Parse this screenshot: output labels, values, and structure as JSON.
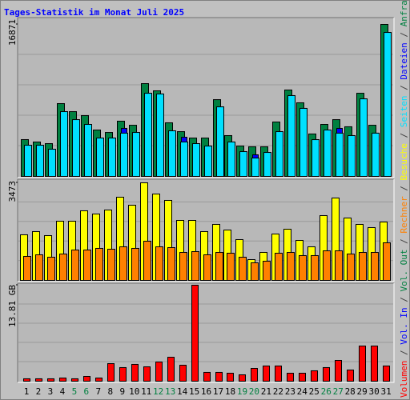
{
  "chart_data": [
    {
      "type": "bar",
      "title": "Tages-Statistik im Monat Juli 2025",
      "ylim": [
        0,
        16871
      ],
      "yticks": [
        16871
      ],
      "series": [
        {
          "name": "Anfragen",
          "color": "#008040",
          "values": [
            4085,
            3818,
            3640,
            8080,
            7190,
            6750,
            5150,
            4880,
            6130,
            5680,
            10300,
            9500,
            5950,
            4970,
            4260,
            4260,
            8520,
            4530,
            3370,
            3290,
            3290,
            6040,
            9590,
            8170,
            4710,
            5770,
            6300,
            5510,
            9230,
            5680,
            16871
          ]
        },
        {
          "name": "Dateien",
          "color": "#0000ff",
          "values": [
            3460,
            3460,
            3020,
            7190,
            6300,
            5770,
            4260,
            4260,
            5330,
            4880,
            9230,
            9150,
            5060,
            4350,
            3640,
            3370,
            7720,
            3820,
            2750,
            2400,
            2660,
            4970,
            8970,
            7550,
            4080,
            5150,
            5330,
            4530,
            8610,
            4800,
            15980
          ]
        },
        {
          "name": "Seiten",
          "color": "#00e0ff",
          "values": [
            3460,
            3460,
            3020,
            7190,
            6300,
            5770,
            4260,
            4260,
            4800,
            4880,
            9230,
            9150,
            5060,
            3820,
            3640,
            3370,
            7720,
            3820,
            2750,
            2040,
            2660,
            4970,
            8970,
            7550,
            4080,
            5150,
            4800,
            4530,
            8610,
            4800,
            15980
          ]
        }
      ]
    },
    {
      "type": "bar",
      "ylim": [
        0,
        3473
      ],
      "yticks": [
        3473
      ],
      "series": [
        {
          "name": "Besuche",
          "color": "#ffff00",
          "values": [
            1623,
            1737,
            1594,
            2107,
            2107,
            2477,
            2363,
            2505,
            2961,
            2676,
            3473,
            3074,
            2847,
            2135,
            2135,
            1737,
            1993,
            1793,
            1452,
            740,
            996,
            1651,
            1822,
            1423,
            1196,
            2306,
            2932,
            2220,
            1993,
            1879,
            2078
          ]
        },
        {
          "name": "Rechner",
          "color": "#ff8000",
          "values": [
            854,
            911,
            826,
            939,
            1082,
            1082,
            1139,
            1110,
            1196,
            1139,
            1395,
            1196,
            1167,
            996,
            1025,
            911,
            996,
            968,
            826,
            626,
            683,
            968,
            996,
            883,
            883,
            1053,
            1053,
            939,
            996,
            996,
            1338
          ]
        }
      ]
    },
    {
      "type": "bar",
      "ylim": [
        0,
        13.81
      ],
      "yticks": [
        {
          "value": 13.81,
          "label": "13.81 GB"
        }
      ],
      "categories": [
        "1",
        "2",
        "3",
        "4",
        "5",
        "6",
        "7",
        "8",
        "9",
        "10",
        "11",
        "12",
        "13",
        "14",
        "15",
        "16",
        "17",
        "18",
        "19",
        "20",
        "21",
        "22",
        "23",
        "24",
        "25",
        "26",
        "27",
        "28",
        "29",
        "30",
        "31"
      ],
      "category_colors": [
        "#000000",
        "#000000",
        "#000000",
        "#000000",
        "#008040",
        "#008040",
        "#000000",
        "#000000",
        "#000000",
        "#000000",
        "#000000",
        "#008040",
        "#008040",
        "#000000",
        "#000000",
        "#000000",
        "#000000",
        "#000000",
        "#008040",
        "#008040",
        "#000000",
        "#000000",
        "#000000",
        "#000000",
        "#000000",
        "#008040",
        "#008040",
        "#000000",
        "#000000",
        "#000000",
        "#000000"
      ],
      "series": [
        {
          "name": "Volumen",
          "color": "#ff0000",
          "values": [
            0.35,
            0.35,
            0.35,
            0.46,
            0.35,
            0.69,
            0.46,
            2.53,
            1.96,
            2.42,
            2.07,
            2.76,
            3.45,
            2.3,
            13.81,
            1.27,
            1.27,
            1.15,
            0.92,
            1.84,
            2.19,
            2.19,
            1.15,
            1.15,
            1.5,
            1.96,
            2.99,
            1.61,
            5.06,
            5.06,
            2.19
          ]
        }
      ],
      "legend_extra": [
        {
          "name": "Vol. In",
          "color": "#0000ff"
        },
        {
          "name": "Vol. Out",
          "color": "#008040"
        }
      ],
      "legend_separator": " / "
    }
  ]
}
